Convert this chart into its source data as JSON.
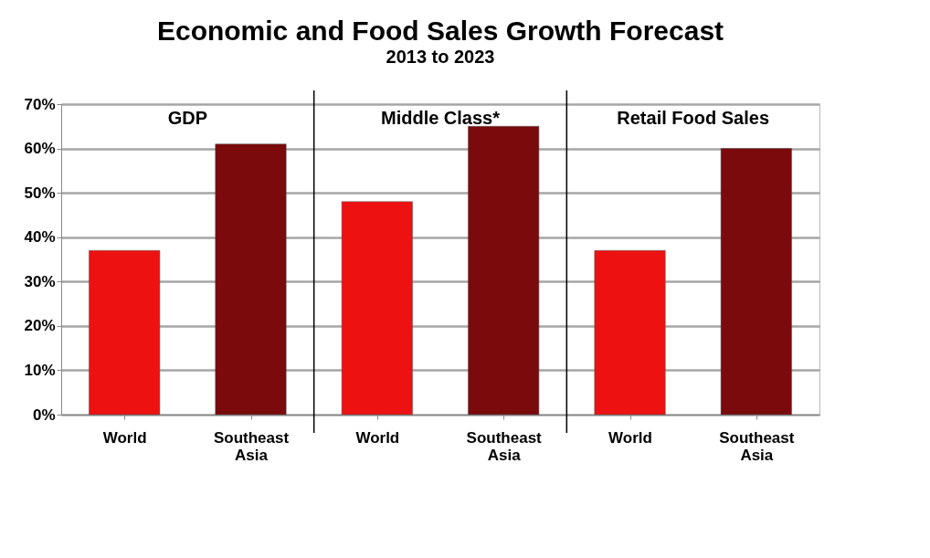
{
  "chart_data": {
    "type": "bar",
    "title": "Economic and Food Sales Growth Forecast",
    "subtitle": "2013 to 2023",
    "categories": [
      "World",
      "Southeast Asia",
      "World",
      "Southeast Asia",
      "World",
      "Southeast Asia"
    ],
    "values": [
      37,
      61,
      48,
      65,
      37,
      60
    ],
    "colors": [
      "#ee1111",
      "#7a0a0c",
      "#ee1111",
      "#7a0a0c",
      "#ee1111",
      "#7a0a0c"
    ],
    "annotations": [
      "GDP",
      "Middle Class*",
      "Retail Food Sales"
    ],
    "ylim": [
      0,
      70
    ],
    "yticks": [
      {
        "value": 0,
        "label": "0%"
      },
      {
        "value": 10,
        "label": "10%"
      },
      {
        "value": 20,
        "label": "20%"
      },
      {
        "value": 30,
        "label": "30%"
      },
      {
        "value": 40,
        "label": "40%"
      },
      {
        "value": 50,
        "label": "50%"
      },
      {
        "value": 60,
        "label": "60%"
      },
      {
        "value": 70,
        "label": "70%"
      }
    ],
    "grid": "y"
  }
}
